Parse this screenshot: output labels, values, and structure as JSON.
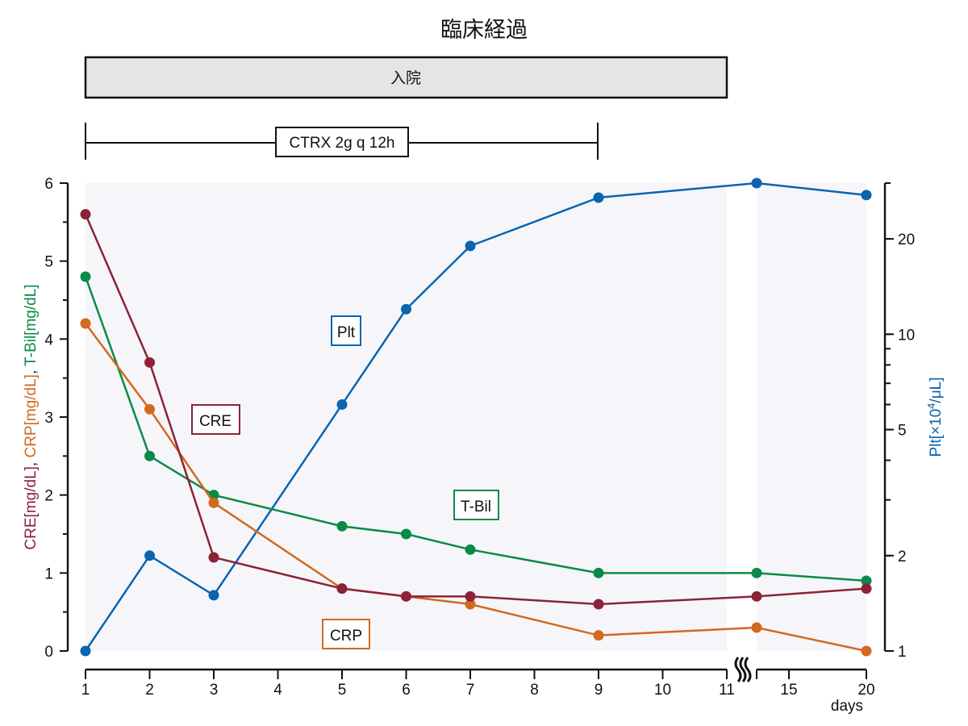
{
  "chart_data": {
    "type": "line",
    "title": "臨床経過",
    "timeline": {
      "admission_label": "入院",
      "admission_start_day": 1,
      "admission_end_day": 11,
      "antibiotic_label": "CTRX 2g q 12h",
      "antibiotic_start_day": 1,
      "antibiotic_end_day": 9
    },
    "x": [
      1,
      2,
      3,
      5,
      6,
      7,
      9,
      14,
      20
    ],
    "x_tick_labels": [
      "1",
      "2",
      "3",
      "4",
      "5",
      "6",
      "7",
      "8",
      "9",
      "10",
      "11",
      "15",
      "20"
    ],
    "x_unit": "days",
    "x_axis_break": "between 11 and 15",
    "y_left": {
      "label_parts": [
        {
          "text": "CRE[mg/dL]",
          "color": "#8b2238"
        },
        {
          "text": ", ",
          "color": "#111111"
        },
        {
          "text": "CRP[mg/dL]",
          "color": "#d2691e"
        },
        {
          "text": ", ",
          "color": "#111111"
        },
        {
          "text": "T-Bil[mg/dL]",
          "color": "#0a8a48"
        }
      ],
      "ylim": [
        0,
        6
      ],
      "ticks": [
        "0",
        "1",
        "2",
        "3",
        "4",
        "5",
        "6"
      ]
    },
    "y_right": {
      "label_base": "Plt[×10",
      "label_sup": "4",
      "label_tail": "/μL]",
      "scale": "log",
      "ylim": [
        1,
        30
      ],
      "tick_labels": [
        "1",
        "2",
        "5",
        "10",
        "20"
      ]
    },
    "series": [
      {
        "name": "CRE",
        "color": "#8b2238",
        "axis": "left",
        "values": [
          5.6,
          3.7,
          1.2,
          0.8,
          0.7,
          0.7,
          0.6,
          0.7,
          0.8
        ]
      },
      {
        "name": "CRP",
        "color": "#d2691e",
        "axis": "left",
        "values": [
          4.2,
          3.1,
          1.9,
          0.8,
          0.7,
          0.6,
          0.2,
          0.3,
          0.0
        ]
      },
      {
        "name": "T-Bil",
        "color": "#0a8a48",
        "axis": "left",
        "values": [
          4.8,
          2.5,
          2.0,
          1.6,
          1.5,
          1.3,
          1.0,
          1.0,
          0.9
        ]
      },
      {
        "name": "Plt",
        "color": "#0a64b0",
        "axis": "right",
        "values": [
          1.0,
          2.0,
          1.5,
          6.0,
          12.0,
          19.0,
          27.0,
          30.0,
          27.5
        ]
      }
    ],
    "grid": false
  }
}
